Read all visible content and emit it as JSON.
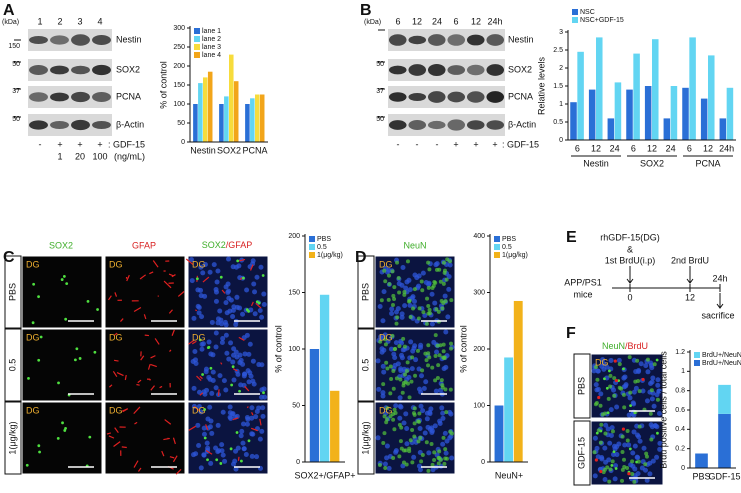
{
  "panels": {
    "A": {
      "letter": "A",
      "kda": "(kDa)",
      "markers": [
        "150",
        "50",
        "37",
        "50"
      ],
      "lanes": [
        "1",
        "2",
        "3",
        "4"
      ],
      "rows": [
        "Nestin",
        "SOX2",
        "PCNA",
        "β-Actin"
      ],
      "treatment": [
        "-",
        "+",
        "+",
        "+"
      ],
      "treatment_label": ": GDF-15",
      "doses": [
        "1",
        "20",
        "100"
      ],
      "dose_unit": "(ng/mL)"
    },
    "B": {
      "letter": "B",
      "kda": "(kDa)",
      "markers": [
        "50",
        "37",
        "50"
      ],
      "lanes": [
        "6",
        "12",
        "24",
        "6",
        "12",
        "24h"
      ],
      "rows": [
        "Nestin",
        "SOX2",
        "PCNA",
        "β-Actin"
      ],
      "treatment": [
        "-",
        "-",
        "-",
        "+",
        "+",
        "+"
      ],
      "treatment_label": ": GDF-15"
    },
    "C": {
      "letter": "C",
      "columns": [
        "SOX2",
        "GFAP"
      ],
      "separator": "/",
      "rows": [
        "PBS",
        "0.5",
        "1(μg/kg)"
      ],
      "region": "DG"
    },
    "D": {
      "letter": "D",
      "column": "NeuN",
      "rows": [
        "PBS",
        "0.5",
        "1(μg/kg)"
      ],
      "region": "DG"
    },
    "E": {
      "letter": "E",
      "treatment": "rhGDF-15(DG)",
      "and": "&",
      "first": "1st BrdU(i.p)",
      "second": "2nd BrdU",
      "model": [
        "APP/PS1",
        "mice"
      ],
      "times": [
        "0",
        "12",
        "24h"
      ],
      "end": "sacrifice"
    },
    "F": {
      "letter": "F",
      "columns": [
        "NeuN",
        "BrdU"
      ],
      "separator": "/",
      "rows": [
        "PBS",
        "GDF-15"
      ],
      "region": "DG"
    }
  },
  "chart_data": [
    {
      "type": "bar",
      "ylabel": "% of control",
      "categories": [
        "Nestin",
        "SOX2",
        "PCNA"
      ],
      "series": [
        {
          "name": "lane 1",
          "color": "#2a6fd6",
          "values": [
            100,
            100,
            100
          ]
        },
        {
          "name": "lane 2",
          "color": "#62d5f2",
          "values": [
            155,
            120,
            115
          ]
        },
        {
          "name": "lane 3",
          "color": "#f7dc3c",
          "values": [
            170,
            230,
            125
          ]
        },
        {
          "name": "lane 4",
          "color": "#f2a51a",
          "values": [
            185,
            160,
            125
          ]
        }
      ],
      "ylim": [
        0,
        300
      ],
      "yticks": [
        0,
        50,
        100,
        150,
        200,
        250,
        300
      ],
      "legend": "upper-left"
    },
    {
      "type": "bar",
      "ylabel": "Relative levels",
      "categories": [
        "6",
        "12",
        "24",
        "6",
        "12",
        "24",
        "6",
        "12",
        "24h"
      ],
      "groups": [
        "Nestin",
        "SOX2",
        "PCNA"
      ],
      "series": [
        {
          "name": "NSC",
          "color": "#2a6fd6",
          "values": [
            1.05,
            1.4,
            0.6,
            1.4,
            1.5,
            0.6,
            1.45,
            1.15,
            0.6
          ]
        },
        {
          "name": "NSC+GDF-15",
          "color": "#62d5f2",
          "values": [
            2.45,
            2.85,
            1.6,
            2.4,
            2.8,
            1.5,
            2.85,
            2.35,
            1.45
          ]
        }
      ],
      "ylim": [
        0,
        3
      ],
      "yticks": [
        0,
        0.5,
        1,
        1.5,
        2,
        2.5,
        3
      ],
      "legend": "above"
    },
    {
      "type": "bar",
      "ylabel": "% of control",
      "xlabel": "SOX2+/GFAP+",
      "series": [
        {
          "name": "PBS",
          "color": "#2a6fd6",
          "values": [
            100
          ]
        },
        {
          "name": "0.5",
          "color": "#62d5f2",
          "values": [
            148
          ]
        },
        {
          "name": "1(μg/kg)",
          "color": "#f2b21a",
          "values": [
            63
          ]
        }
      ],
      "ylim": [
        0,
        200
      ],
      "yticks": [
        0,
        50,
        100,
        150,
        200
      ],
      "legend": "upper-left"
    },
    {
      "type": "bar",
      "ylabel": "% of control",
      "xlabel": "NeuN+",
      "series": [
        {
          "name": "PBS",
          "color": "#2a6fd6",
          "values": [
            100
          ]
        },
        {
          "name": "0.5",
          "color": "#62d5f2",
          "values": [
            185
          ]
        },
        {
          "name": "1(μg/kg)",
          "color": "#f2b21a",
          "values": [
            285
          ]
        }
      ],
      "ylim": [
        0,
        400
      ],
      "yticks": [
        0,
        100,
        200,
        300,
        400
      ],
      "legend": "upper-left"
    },
    {
      "type": "stacked_bar",
      "ylabel": "Brdu positive cells / total cells",
      "categories": [
        "PBS",
        "GDF-15"
      ],
      "series": [
        {
          "name": "BrdU+/NeuN+",
          "color": "#2a6fd6",
          "values": [
            0.15,
            0.56
          ]
        },
        {
          "name": "BrdU+/NeuN-",
          "color": "#62d5f2",
          "values": [
            0,
            0.3
          ]
        }
      ],
      "ylim": [
        0,
        1.2
      ],
      "yticks": [
        0,
        0.2,
        0.4,
        0.6,
        0.8,
        1,
        1.2
      ],
      "legend": "upper-left",
      "legend_reversed": true
    }
  ]
}
